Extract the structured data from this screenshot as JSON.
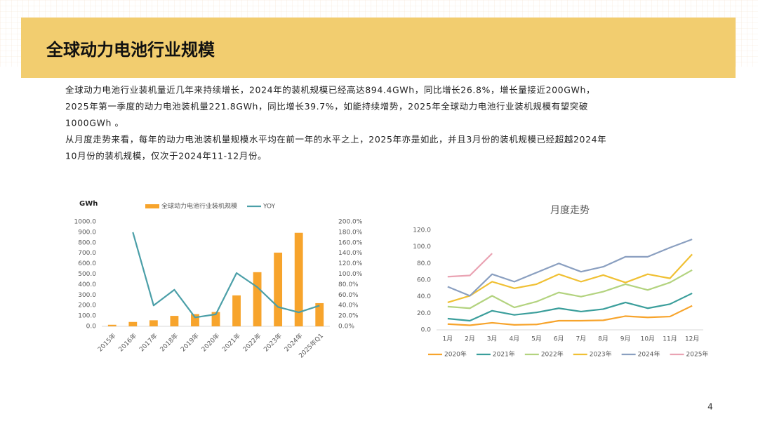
{
  "header": {
    "title": "全球动力电池行业规模"
  },
  "paragraph_lines": [
    "全球动力电池行业装机量近几年来持续增长，2024年的装机规模已经高达894.4GWh，同比增长26.8%，增长量接近200GWh，",
    "2025年第一季度的动力电池装机量221.8GWh，同比增长39.7%，如能持续增势，2025年全球动力电池行业装机规模有望突破",
    "1000GWh 。",
    "从月度走势来看，每年的动力电池装机量规模水平均在前一年的水平之上，2025年亦是如此，并且3月份的装机规模已经超越2024年",
    "10月份的装机规模，仅次于2024年11-12月份。"
  ],
  "chart_data": [
    {
      "type": "bar",
      "y_label": "GWh",
      "legend": "top",
      "categories": [
        "2015年",
        "2016年",
        "2017年",
        "2018年",
        "2019年",
        "2020年",
        "2021年",
        "2022年",
        "2023年",
        "2024年",
        "2025年Q1"
      ],
      "series": [
        {
          "name": "全球动力电池行业装机规模",
          "type": "bar",
          "color": "#f7a42c",
          "values": [
            15,
            42,
            58,
            100,
            117,
            137,
            296,
            518,
            705,
            894.4,
            221.8
          ]
        },
        {
          "name": "YOY",
          "type": "line",
          "axis": "y2",
          "color": "#4b9fa8",
          "values": [
            null,
            180,
            40,
            70,
            17,
            23,
            102,
            75,
            37,
            26.8,
            39.7
          ]
        }
      ],
      "ylim": [
        0,
        1000
      ],
      "yticks": [
        {
          "value": 0,
          "label": "0.0"
        },
        {
          "value": 100,
          "label": "100.0"
        },
        {
          "value": 200,
          "label": "200.0"
        },
        {
          "value": 300,
          "label": "300.0"
        },
        {
          "value": 400,
          "label": "400.0"
        },
        {
          "value": 500,
          "label": "500.0"
        },
        {
          "value": 600,
          "label": "600.0"
        },
        {
          "value": 700,
          "label": "700.0"
        },
        {
          "value": 800,
          "label": "800.0"
        },
        {
          "value": 900,
          "label": "900.0"
        },
        {
          "value": 1000,
          "label": "1000.0"
        }
      ],
      "y2lim": [
        0,
        200
      ],
      "y2ticks": [
        {
          "value": 0,
          "label": "0.0%"
        },
        {
          "value": 20,
          "label": "20.0%"
        },
        {
          "value": 40,
          "label": "40.0%"
        },
        {
          "value": 60,
          "label": "60.0%"
        },
        {
          "value": 80,
          "label": "80.0%"
        },
        {
          "value": 100,
          "label": "100.0%"
        },
        {
          "value": 120,
          "label": "120.0%"
        },
        {
          "value": 140,
          "label": "140.0%"
        },
        {
          "value": 160,
          "label": "160.0%"
        },
        {
          "value": 180,
          "label": "180.0%"
        },
        {
          "value": 200,
          "label": "200.0%"
        }
      ]
    },
    {
      "type": "line",
      "title": "月度走势",
      "legend": "bottom",
      "categories": [
        "1月",
        "2月",
        "3月",
        "4月",
        "5月",
        "6月",
        "7月",
        "8月",
        "9月",
        "10月",
        "11月",
        "12月"
      ],
      "series": [
        {
          "name": "2020年",
          "color": "#f7a42c",
          "values": [
            7,
            5.5,
            8.5,
            6,
            6.5,
            11,
            11,
            11.5,
            16.5,
            15,
            16,
            29
          ]
        },
        {
          "name": "2021年",
          "color": "#3a9e9b",
          "values": [
            13.5,
            11,
            23,
            18,
            21,
            26,
            22,
            25,
            33,
            26,
            31,
            44
          ]
        },
        {
          "name": "2022年",
          "color": "#b3d37f",
          "values": [
            28,
            26,
            41,
            27,
            34,
            45,
            40,
            46,
            55,
            48,
            57,
            72
          ]
        },
        {
          "name": "2023年",
          "color": "#f0c033",
          "values": [
            33,
            41,
            58,
            50,
            55,
            67,
            58,
            66,
            57,
            67,
            62,
            91
          ]
        },
        {
          "name": "2024年",
          "color": "#8a9fc0",
          "values": [
            52,
            41,
            67,
            58,
            69,
            80,
            70,
            76,
            88,
            88,
            99,
            109
          ]
        },
        {
          "name": "2025年",
          "color": "#eaa3b3",
          "values": [
            64,
            65.5,
            92,
            null,
            null,
            null,
            null,
            null,
            null,
            null,
            null,
            null
          ]
        }
      ],
      "ylim": [
        0,
        120
      ],
      "yticks": [
        {
          "value": 0,
          "label": "0.0"
        },
        {
          "value": 20,
          "label": "20.0"
        },
        {
          "value": 40,
          "label": "40.0"
        },
        {
          "value": 60,
          "label": "60.0"
        },
        {
          "value": 80,
          "label": "80.0"
        },
        {
          "value": 100,
          "label": "100.0"
        },
        {
          "value": 120,
          "label": "120.0"
        }
      ]
    }
  ],
  "page_number": "4"
}
